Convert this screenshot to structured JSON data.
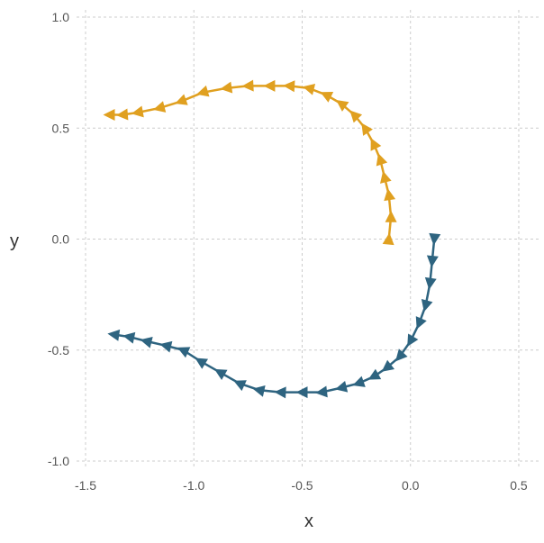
{
  "chart_data": {
    "type": "line",
    "title": "",
    "xlabel": "x",
    "ylabel": "y",
    "xlim": [
      -1.5,
      0.55
    ],
    "ylim": [
      -1.0,
      1.0
    ],
    "x_ticks": [
      -1.5,
      -1.0,
      -0.5,
      0.0,
      0.5
    ],
    "x_tick_labels": [
      "-1.5",
      "-1.0",
      "-0.5",
      "0.0",
      "0.5"
    ],
    "y_ticks": [
      -1.0,
      -0.5,
      0.0,
      0.5,
      1.0
    ],
    "y_tick_labels": [
      "-1.0",
      "-0.5",
      "0.0",
      "0.5",
      "1.0"
    ],
    "grid": true,
    "legend": "none",
    "markers": "arrowheads pointing along direction of travel",
    "series": [
      {
        "color": "#e0a020",
        "x": [
          -0.1,
          -0.09,
          -0.1,
          -0.12,
          -0.14,
          -0.17,
          -0.21,
          -0.26,
          -0.32,
          -0.39,
          -0.47,
          -0.56,
          -0.65,
          -0.75,
          -0.85,
          -0.96,
          -1.06,
          -1.16,
          -1.26,
          -1.33,
          -1.39
        ],
        "y": [
          0.0,
          0.1,
          0.2,
          0.28,
          0.36,
          0.43,
          0.5,
          0.56,
          0.61,
          0.65,
          0.68,
          0.69,
          0.69,
          0.69,
          0.68,
          0.66,
          0.62,
          0.59,
          0.57,
          0.56,
          0.56
        ]
      },
      {
        "color": "#2e6480",
        "x": [
          0.11,
          0.1,
          0.09,
          0.07,
          0.04,
          0.0,
          -0.05,
          -0.11,
          -0.17,
          -0.24,
          -0.32,
          -0.41,
          -0.5,
          -0.6,
          -0.7,
          -0.79,
          -0.88,
          -0.97,
          -1.05,
          -1.13,
          -1.22,
          -1.3,
          -1.37
        ],
        "y": [
          0.0,
          -0.1,
          -0.2,
          -0.3,
          -0.38,
          -0.46,
          -0.53,
          -0.58,
          -0.62,
          -0.65,
          -0.67,
          -0.69,
          -0.69,
          -0.69,
          -0.68,
          -0.65,
          -0.6,
          -0.55,
          -0.5,
          -0.48,
          -0.46,
          -0.44,
          -0.43
        ]
      }
    ]
  }
}
